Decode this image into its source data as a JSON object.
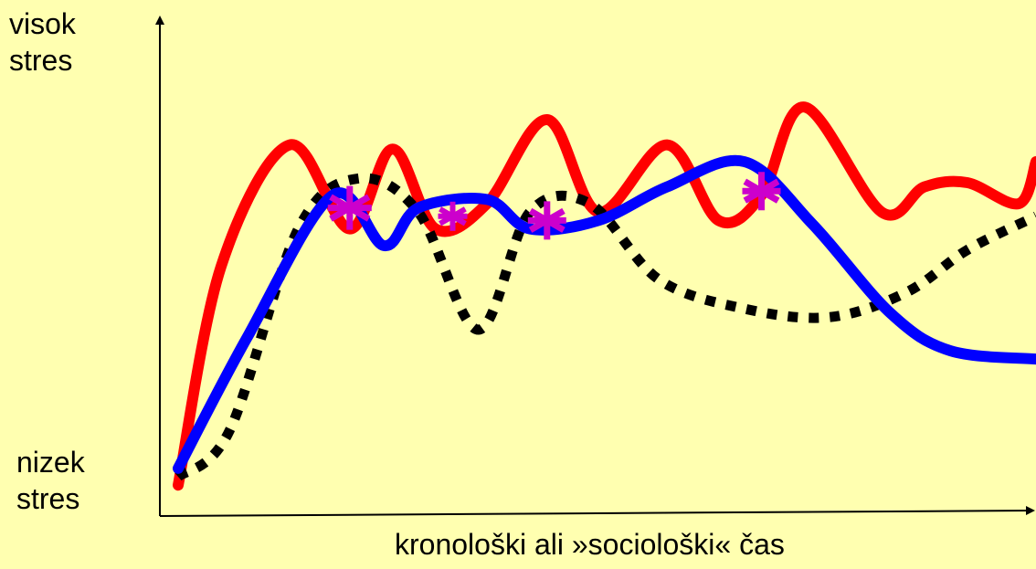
{
  "chart_data": {
    "type": "line",
    "title": "",
    "xlabel": "kronološki ali »sociološki« čas",
    "ylabel_top": [
      "visok",
      "stres"
    ],
    "ylabel_bottom": [
      "nizek",
      "stres"
    ],
    "ylim": [
      0,
      1
    ],
    "grid": false,
    "legend": "none",
    "series": [
      {
        "color": "#FF0000",
        "style": "solid",
        "x": [
          0.0,
          0.05,
          0.13,
          0.2,
          0.25,
          0.3,
          0.36,
          0.43,
          0.49,
          0.57,
          0.63,
          0.68,
          0.73,
          0.82,
          0.87,
          0.92,
          0.98,
          1.0
        ],
        "y": [
          0.03,
          0.55,
          0.84,
          0.64,
          0.83,
          0.64,
          0.7,
          0.9,
          0.68,
          0.84,
          0.66,
          0.72,
          0.93,
          0.68,
          0.74,
          0.75,
          0.7,
          0.8
        ]
      },
      {
        "color": "#0000FF",
        "style": "solid",
        "x": [
          0.0,
          0.08,
          0.18,
          0.24,
          0.28,
          0.36,
          0.41,
          0.49,
          0.57,
          0.66,
          0.74,
          0.83,
          0.9,
          1.0
        ],
        "y": [
          0.07,
          0.38,
          0.72,
          0.6,
          0.69,
          0.71,
          0.64,
          0.66,
          0.74,
          0.8,
          0.65,
          0.44,
          0.35,
          0.33
        ]
      },
      {
        "color": "#000000",
        "style": "dotted",
        "x": [
          0.0,
          0.06,
          0.14,
          0.21,
          0.28,
          0.35,
          0.41,
          0.48,
          0.56,
          0.66,
          0.76,
          0.85,
          0.92,
          1.0
        ],
        "y": [
          0.05,
          0.16,
          0.64,
          0.76,
          0.68,
          0.4,
          0.68,
          0.7,
          0.52,
          0.45,
          0.43,
          0.49,
          0.59,
          0.67
        ]
      }
    ],
    "markers": {
      "color": "#CC00CC",
      "symbol": "✱",
      "points": [
        {
          "x": 0.2,
          "y": 0.69
        },
        {
          "x": 0.32,
          "y": 0.67
        },
        {
          "x": 0.43,
          "y": 0.66
        },
        {
          "x": 0.68,
          "y": 0.73
        }
      ]
    }
  }
}
